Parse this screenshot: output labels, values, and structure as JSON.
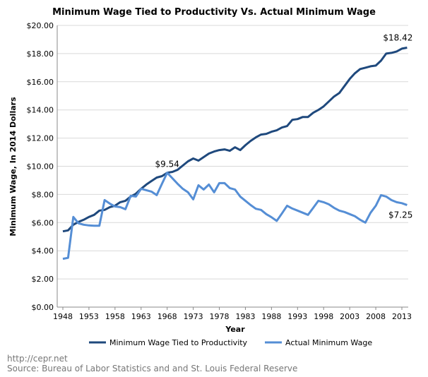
{
  "chart_data": {
    "type": "line",
    "title": "Minimum Wage Tied to Productivity Vs. Actual Minimum Wage",
    "xlabel": "Year",
    "ylabel": "Minimum Wage, In 2014 Dollars",
    "ylim": [
      0,
      20
    ],
    "yticks": [
      "$0.00",
      "$2.00",
      "$4.00",
      "$6.00",
      "$8.00",
      "$10.00",
      "$12.00",
      "$14.00",
      "$16.00",
      "$18.00",
      "$20.00"
    ],
    "xticks": [
      "1948",
      "1953",
      "1958",
      "1963",
      "1968",
      "1973",
      "1978",
      "1983",
      "1988",
      "1993",
      "1998",
      "2003",
      "2008",
      "2013"
    ],
    "grid": true,
    "legend": "bottom",
    "x_start": 1948,
    "x_end": 2014,
    "series": [
      {
        "name": "Minimum Wage Tied to Productivity",
        "color": "#1F497D",
        "values": [
          5.38,
          5.45,
          5.85,
          6.05,
          6.2,
          6.4,
          6.55,
          6.85,
          6.9,
          7.1,
          7.2,
          7.45,
          7.55,
          7.85,
          8.05,
          8.4,
          8.7,
          8.95,
          9.2,
          9.3,
          9.54,
          9.6,
          9.75,
          10.05,
          10.35,
          10.55,
          10.4,
          10.65,
          10.9,
          11.05,
          11.15,
          11.2,
          11.1,
          11.35,
          11.15,
          11.5,
          11.8,
          12.05,
          12.25,
          12.3,
          12.45,
          12.55,
          12.75,
          12.85,
          13.3,
          13.35,
          13.5,
          13.5,
          13.8,
          14.0,
          14.25,
          14.6,
          14.95,
          15.2,
          15.7,
          16.2,
          16.6,
          16.9,
          17.0,
          17.1,
          17.15,
          17.5,
          18.0,
          18.05,
          18.15,
          18.35,
          18.42
        ]
      },
      {
        "name": "Actual Minimum Wage",
        "color": "#558ED5",
        "values": [
          3.43,
          3.5,
          6.4,
          5.95,
          5.85,
          5.8,
          5.78,
          5.78,
          7.6,
          7.35,
          7.15,
          7.1,
          6.95,
          7.9,
          7.85,
          8.4,
          8.3,
          8.2,
          7.95,
          8.75,
          9.54,
          9.15,
          8.75,
          8.4,
          8.15,
          7.65,
          8.65,
          8.35,
          8.7,
          8.15,
          8.8,
          8.8,
          8.45,
          8.35,
          7.85,
          7.55,
          7.25,
          6.98,
          6.9,
          6.6,
          6.38,
          6.12,
          6.65,
          7.2,
          7.0,
          6.85,
          6.7,
          6.55,
          7.05,
          7.55,
          7.45,
          7.3,
          7.05,
          6.85,
          6.75,
          6.6,
          6.45,
          6.2,
          6.0,
          6.7,
          7.2,
          7.95,
          7.85,
          7.6,
          7.45,
          7.38,
          7.25
        ]
      }
    ],
    "annotations": [
      {
        "text": "$9.54",
        "year": 1968,
        "value": 9.54
      },
      {
        "text": "$18.42",
        "year": 2014,
        "value": 18.42
      },
      {
        "text": "$7.25",
        "year": 2014,
        "value": 7.25
      }
    ]
  },
  "footer": {
    "url": "http://cepr.net",
    "source": "Source: Bureau of Labor Statistics and and St. Louis Federal Reserve"
  }
}
